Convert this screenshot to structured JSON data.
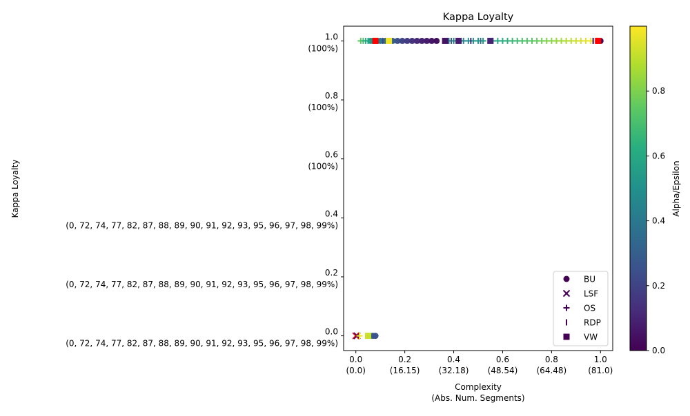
{
  "chart_data": {
    "type": "scatter",
    "title": "Kappa Loyalty",
    "xlabel_line1": "Complexity",
    "xlabel_line2": "(Abs. Num. Segments)",
    "ylabel": "Kappa Loyalty",
    "xlim": [
      -0.05,
      1.05
    ],
    "ylim": [
      -0.05,
      1.05
    ],
    "grid": false,
    "legend_position": "lower-right",
    "x_ticks": [
      {
        "value": 0.0,
        "label": "0.0",
        "sub": "(0.0)"
      },
      {
        "value": 0.2,
        "label": "0.2",
        "sub": "(16.15)"
      },
      {
        "value": 0.4,
        "label": "0.4",
        "sub": "(32.18)"
      },
      {
        "value": 0.6,
        "label": "0.6",
        "sub": "(48.54)"
      },
      {
        "value": 0.8,
        "label": "0.8",
        "sub": "(64.48)"
      },
      {
        "value": 1.0,
        "label": "1.0",
        "sub": "(81.0)"
      }
    ],
    "y_ticks": [
      {
        "value": 0.0,
        "label": "0.0",
        "sub": "(0, 72, 74, 77, 82, 87, 88, 89, 90, 91, 92, 93, 95, 96, 97, 98, 99%)"
      },
      {
        "value": 0.2,
        "label": "0.2",
        "sub": "(0, 72, 74, 77, 82, 87, 88, 89, 90, 91, 92, 93, 95, 96, 97, 98, 99%)"
      },
      {
        "value": 0.4,
        "label": "0.4",
        "sub": "(0, 72, 74, 77, 82, 87, 88, 89, 90, 91, 92, 93, 95, 96, 97, 98, 99%)"
      },
      {
        "value": 0.6,
        "label": "0.6",
        "sub": "(100%)"
      },
      {
        "value": 0.8,
        "label": "0.8",
        "sub": "(100%)"
      },
      {
        "value": 1.0,
        "label": "1.0",
        "sub": "(100%)"
      }
    ],
    "colorbar": {
      "label": "Alpha/Epsilon",
      "range": [
        0.0,
        1.0
      ],
      "colormap": "viridis",
      "ticks": [
        "0.0",
        "0.2",
        "0.4",
        "0.6",
        "0.8"
      ]
    },
    "highlight_color": "#ff0000",
    "series": [
      {
        "name": "BU",
        "marker": "circle",
        "points": [
          {
            "x": 0.06,
            "y": 1.0,
            "c": 0.55
          },
          {
            "x": 0.07,
            "y": 1.0,
            "c": 0.5
          },
          {
            "x": 0.08,
            "y": 1.0,
            "c": 0.45
          },
          {
            "x": 0.1,
            "y": 1.0,
            "c": 0.4
          },
          {
            "x": 0.12,
            "y": 1.0,
            "c": 0.35
          },
          {
            "x": 0.15,
            "y": 1.0,
            "c": 0.3
          },
          {
            "x": 0.17,
            "y": 1.0,
            "c": 0.25
          },
          {
            "x": 0.19,
            "y": 1.0,
            "c": 0.2
          },
          {
            "x": 0.21,
            "y": 1.0,
            "c": 0.18
          },
          {
            "x": 0.23,
            "y": 1.0,
            "c": 0.15
          },
          {
            "x": 0.25,
            "y": 1.0,
            "c": 0.12
          },
          {
            "x": 0.27,
            "y": 1.0,
            "c": 0.1
          },
          {
            "x": 0.29,
            "y": 1.0,
            "c": 0.08
          },
          {
            "x": 0.31,
            "y": 1.0,
            "c": 0.06
          },
          {
            "x": 0.33,
            "y": 1.0,
            "c": 0.04
          },
          {
            "x": 1.0,
            "y": 1.0,
            "c": 0.02
          },
          {
            "x": 0.05,
            "y": 0.0,
            "c": 0.95
          },
          {
            "x": 0.06,
            "y": 0.0,
            "c": 0.5
          },
          {
            "x": 0.07,
            "y": 0.0,
            "c": 0.3
          },
          {
            "x": 0.08,
            "y": 0.0,
            "c": 0.25
          },
          {
            "x": 0.99,
            "y": 1.0,
            "c": null
          }
        ]
      },
      {
        "name": "LSF",
        "marker": "x",
        "points": [
          {
            "x": 0.0,
            "y": 0.0,
            "c": null
          },
          {
            "x": 0.005,
            "y": 0.0,
            "c": 0.05
          }
        ]
      },
      {
        "name": "OS",
        "marker": "plus",
        "points": [
          {
            "x": 0.02,
            "y": 1.0,
            "c": 0.75
          },
          {
            "x": 0.03,
            "y": 1.0,
            "c": 0.7
          },
          {
            "x": 0.04,
            "y": 1.0,
            "c": 0.62
          },
          {
            "x": 0.05,
            "y": 1.0,
            "c": 0.58
          },
          {
            "x": 0.38,
            "y": 1.0,
            "c": 0.4
          },
          {
            "x": 0.4,
            "y": 1.0,
            "c": 0.42
          },
          {
            "x": 0.44,
            "y": 1.0,
            "c": 0.45
          },
          {
            "x": 0.46,
            "y": 1.0,
            "c": 0.48
          },
          {
            "x": 0.48,
            "y": 1.0,
            "c": 0.5
          },
          {
            "x": 0.5,
            "y": 1.0,
            "c": 0.52
          },
          {
            "x": 0.52,
            "y": 1.0,
            "c": 0.54
          },
          {
            "x": 0.56,
            "y": 1.0,
            "c": 0.57
          },
          {
            "x": 0.58,
            "y": 1.0,
            "c": 0.6
          },
          {
            "x": 0.6,
            "y": 1.0,
            "c": 0.62
          },
          {
            "x": 0.62,
            "y": 1.0,
            "c": 0.64
          },
          {
            "x": 0.64,
            "y": 1.0,
            "c": 0.66
          },
          {
            "x": 0.66,
            "y": 1.0,
            "c": 0.68
          },
          {
            "x": 0.68,
            "y": 1.0,
            "c": 0.7
          },
          {
            "x": 0.7,
            "y": 1.0,
            "c": 0.72
          },
          {
            "x": 0.72,
            "y": 1.0,
            "c": 0.74
          },
          {
            "x": 0.74,
            "y": 1.0,
            "c": 0.76
          },
          {
            "x": 0.76,
            "y": 1.0,
            "c": 0.78
          },
          {
            "x": 0.78,
            "y": 1.0,
            "c": 0.8
          },
          {
            "x": 0.8,
            "y": 1.0,
            "c": 0.82
          },
          {
            "x": 0.82,
            "y": 1.0,
            "c": 0.84
          },
          {
            "x": 0.84,
            "y": 1.0,
            "c": 0.86
          },
          {
            "x": 0.86,
            "y": 1.0,
            "c": 0.88
          },
          {
            "x": 0.88,
            "y": 1.0,
            "c": 0.9
          },
          {
            "x": 0.9,
            "y": 1.0,
            "c": 0.92
          },
          {
            "x": 0.92,
            "y": 1.0,
            "c": 0.94
          },
          {
            "x": 0.94,
            "y": 1.0,
            "c": 0.96
          },
          {
            "x": 0.96,
            "y": 1.0,
            "c": 0.98
          },
          {
            "x": 0.015,
            "y": 0.0,
            "c": 0.98
          }
        ]
      },
      {
        "name": "RDP",
        "marker": "vline",
        "points": [
          {
            "x": 0.09,
            "y": 1.0,
            "c": 0.35
          },
          {
            "x": 0.11,
            "y": 1.0,
            "c": 0.2
          },
          {
            "x": 0.39,
            "y": 1.0,
            "c": 0.3
          },
          {
            "x": 0.47,
            "y": 1.0,
            "c": 0.1
          },
          {
            "x": 0.51,
            "y": 1.0,
            "c": 0.35
          },
          {
            "x": 0.97,
            "y": 1.0,
            "c": 0.02
          },
          {
            "x": 0.985,
            "y": 1.0,
            "c": 0.05
          }
        ]
      },
      {
        "name": "VW",
        "marker": "square",
        "points": [
          {
            "x": 0.08,
            "y": 1.0,
            "c": null
          },
          {
            "x": 0.135,
            "y": 1.0,
            "c": 0.98
          },
          {
            "x": 0.365,
            "y": 1.0,
            "c": 0.05
          },
          {
            "x": 0.42,
            "y": 1.0,
            "c": 0.08
          },
          {
            "x": 0.55,
            "y": 1.0,
            "c": 0.1
          },
          {
            "x": 0.99,
            "y": 1.0,
            "c": null
          },
          {
            "x": 0.05,
            "y": 0.0,
            "c": 0.92
          }
        ]
      }
    ]
  }
}
